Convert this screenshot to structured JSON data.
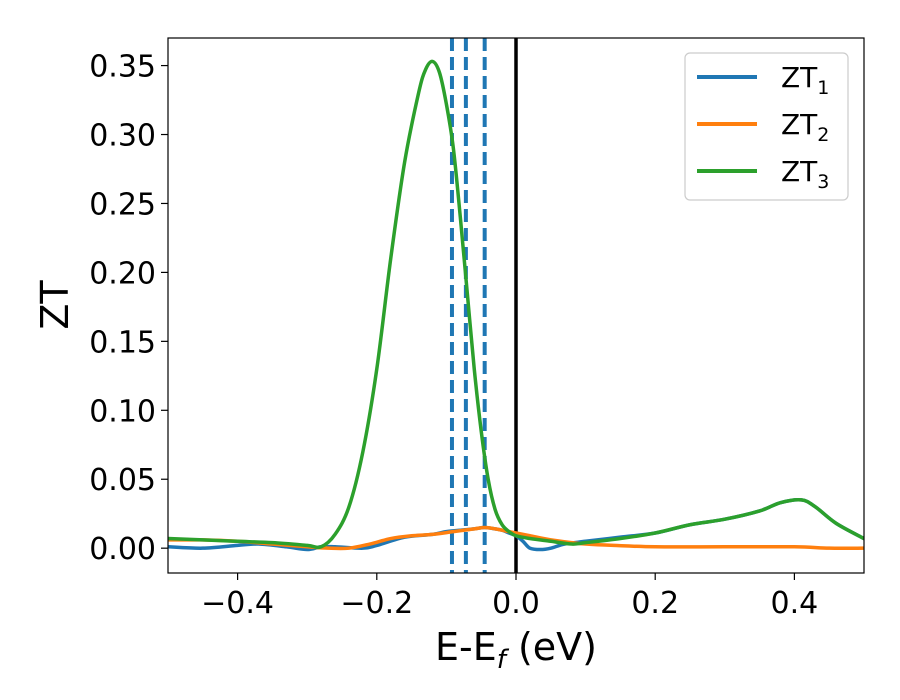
{
  "chart_data": {
    "type": "line",
    "xlabel": "E-E",
    "xlabel_sub": "f",
    "xlabel_unit": " (eV)",
    "ylabel": "ZT",
    "xlim": [
      -0.5,
      0.5
    ],
    "ylim": [
      -0.018,
      0.37
    ],
    "xticks": [
      -0.4,
      -0.2,
      0.0,
      0.2,
      0.4
    ],
    "xtick_labels": [
      "−0.4",
      "−0.2",
      "0.0",
      "0.2",
      "0.4"
    ],
    "yticks": [
      0.0,
      0.05,
      0.1,
      0.15,
      0.2,
      0.25,
      0.3,
      0.35
    ],
    "ytick_labels": [
      "0.00",
      "0.05",
      "0.10",
      "0.15",
      "0.20",
      "0.25",
      "0.30",
      "0.35"
    ],
    "legend_position": "top-right",
    "vlines": [
      {
        "x": 0.0,
        "color": "#000000",
        "style": "solid"
      },
      {
        "x": -0.092,
        "color": "#1f77b4",
        "style": "dashed"
      },
      {
        "x": -0.072,
        "color": "#1f77b4",
        "style": "dashed"
      },
      {
        "x": -0.045,
        "color": "#1f77b4",
        "style": "dashed"
      }
    ],
    "series": [
      {
        "name": "ZT",
        "name_sub": "1",
        "color": "#1f77b4",
        "points": [
          [
            -0.5,
            0.001
          ],
          [
            -0.45,
            0.0
          ],
          [
            -0.4,
            0.002
          ],
          [
            -0.37,
            0.003
          ],
          [
            -0.33,
            0.001
          ],
          [
            -0.3,
            -0.001
          ],
          [
            -0.28,
            0.001
          ],
          [
            -0.26,
            0.001
          ],
          [
            -0.22,
            0.0
          ],
          [
            -0.2,
            0.002
          ],
          [
            -0.16,
            0.008
          ],
          [
            -0.12,
            0.01
          ],
          [
            -0.1,
            0.012
          ],
          [
            -0.08,
            0.013
          ],
          [
            -0.06,
            0.014
          ],
          [
            -0.045,
            0.015
          ],
          [
            -0.03,
            0.014
          ],
          [
            -0.02,
            0.013
          ],
          [
            -0.01,
            0.011
          ],
          [
            0.0,
            0.009
          ],
          [
            0.01,
            0.005
          ],
          [
            0.02,
            0.0
          ],
          [
            0.035,
            -0.001
          ],
          [
            0.05,
            0.0
          ],
          [
            0.07,
            0.003
          ],
          [
            0.1,
            0.005
          ],
          [
            0.15,
            0.008
          ],
          [
            0.2,
            0.011
          ],
          [
            0.25,
            0.017
          ],
          [
            0.3,
            0.021
          ],
          [
            0.35,
            0.027
          ],
          [
            0.38,
            0.033
          ],
          [
            0.41,
            0.035
          ],
          [
            0.43,
            0.03
          ],
          [
            0.46,
            0.018
          ],
          [
            0.5,
            0.007
          ]
        ]
      },
      {
        "name": "ZT",
        "name_sub": "2",
        "color": "#ff7f0e",
        "points": [
          [
            -0.5,
            0.006
          ],
          [
            -0.45,
            0.006
          ],
          [
            -0.4,
            0.005
          ],
          [
            -0.35,
            0.003
          ],
          [
            -0.3,
            0.001
          ],
          [
            -0.27,
            0.0
          ],
          [
            -0.24,
            0.0
          ],
          [
            -0.21,
            0.003
          ],
          [
            -0.18,
            0.007
          ],
          [
            -0.15,
            0.009
          ],
          [
            -0.12,
            0.01
          ],
          [
            -0.09,
            0.012
          ],
          [
            -0.06,
            0.014
          ],
          [
            -0.045,
            0.015
          ],
          [
            -0.03,
            0.014
          ],
          [
            -0.01,
            0.012
          ],
          [
            0.0,
            0.011
          ],
          [
            0.02,
            0.009
          ],
          [
            0.05,
            0.006
          ],
          [
            0.08,
            0.004
          ],
          [
            0.1,
            0.003
          ],
          [
            0.14,
            0.002
          ],
          [
            0.2,
            0.001
          ],
          [
            0.3,
            0.001
          ],
          [
            0.4,
            0.001
          ],
          [
            0.45,
            0.0
          ],
          [
            0.5,
            0.0
          ]
        ]
      },
      {
        "name": "ZT",
        "name_sub": "3",
        "color": "#2ca02c",
        "points": [
          [
            -0.5,
            0.007
          ],
          [
            -0.45,
            0.006
          ],
          [
            -0.4,
            0.005
          ],
          [
            -0.35,
            0.004
          ],
          [
            -0.3,
            0.002
          ],
          [
            -0.28,
            0.001
          ],
          [
            -0.26,
            0.01
          ],
          [
            -0.24,
            0.03
          ],
          [
            -0.22,
            0.07
          ],
          [
            -0.2,
            0.13
          ],
          [
            -0.18,
            0.21
          ],
          [
            -0.16,
            0.28
          ],
          [
            -0.14,
            0.33
          ],
          [
            -0.13,
            0.347
          ],
          [
            -0.12,
            0.353
          ],
          [
            -0.11,
            0.345
          ],
          [
            -0.1,
            0.322
          ],
          [
            -0.09,
            0.29
          ],
          [
            -0.08,
            0.24
          ],
          [
            -0.07,
            0.185
          ],
          [
            -0.06,
            0.13
          ],
          [
            -0.05,
            0.085
          ],
          [
            -0.04,
            0.05
          ],
          [
            -0.03,
            0.028
          ],
          [
            -0.02,
            0.017
          ],
          [
            -0.01,
            0.012
          ],
          [
            0.0,
            0.009
          ],
          [
            0.02,
            0.007
          ],
          [
            0.05,
            0.005
          ],
          [
            0.08,
            0.003
          ],
          [
            0.1,
            0.004
          ],
          [
            0.15,
            0.007
          ],
          [
            0.2,
            0.011
          ],
          [
            0.25,
            0.017
          ],
          [
            0.3,
            0.021
          ],
          [
            0.35,
            0.027
          ],
          [
            0.38,
            0.033
          ],
          [
            0.41,
            0.035
          ],
          [
            0.43,
            0.03
          ],
          [
            0.46,
            0.018
          ],
          [
            0.5,
            0.007
          ]
        ]
      }
    ]
  }
}
